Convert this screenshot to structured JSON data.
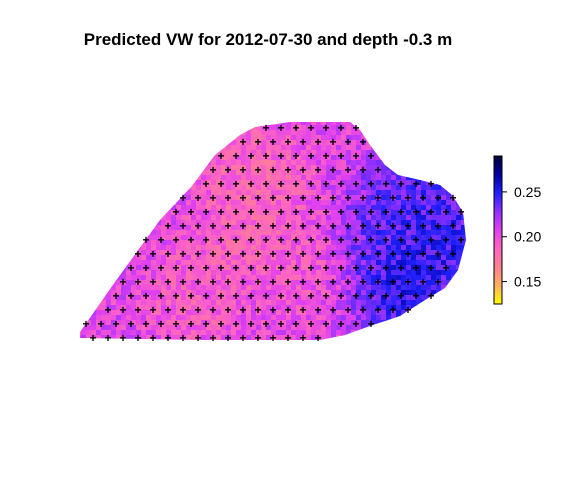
{
  "chart_data": {
    "type": "heatmap",
    "title": "Predicted VW for 2012-07-30 and depth -0.3 m",
    "xlabel": "",
    "ylabel": "",
    "legend": {
      "placement": "right",
      "range": [
        0.125,
        0.29
      ],
      "ticks": [
        {
          "value": 0.15,
          "label": "0.15"
        },
        {
          "value": 0.2,
          "label": "0.20"
        },
        {
          "value": 0.25,
          "label": "0.25"
        }
      ],
      "colors": [
        "#ffff00",
        "#ffb060",
        "#ff8090",
        "#ff66c0",
        "#e040f0",
        "#9030ff",
        "#2020ff",
        "#0000a0",
        "#000033"
      ]
    },
    "pattern": {
      "background_value": 0.205,
      "areas": [
        {
          "region": "upper-left",
          "value": 0.175
        },
        {
          "region": "center-left",
          "value": 0.18
        },
        {
          "region": "lower-left",
          "value": 0.185
        },
        {
          "region": "center",
          "value": 0.19
        },
        {
          "region": "center-right",
          "value": 0.245
        },
        {
          "region": "right",
          "value": 0.26
        },
        {
          "region": "lower-right",
          "value": 0.265
        },
        {
          "region": "upper-right",
          "value": 0.25
        }
      ]
    },
    "observation_marker": "+"
  }
}
